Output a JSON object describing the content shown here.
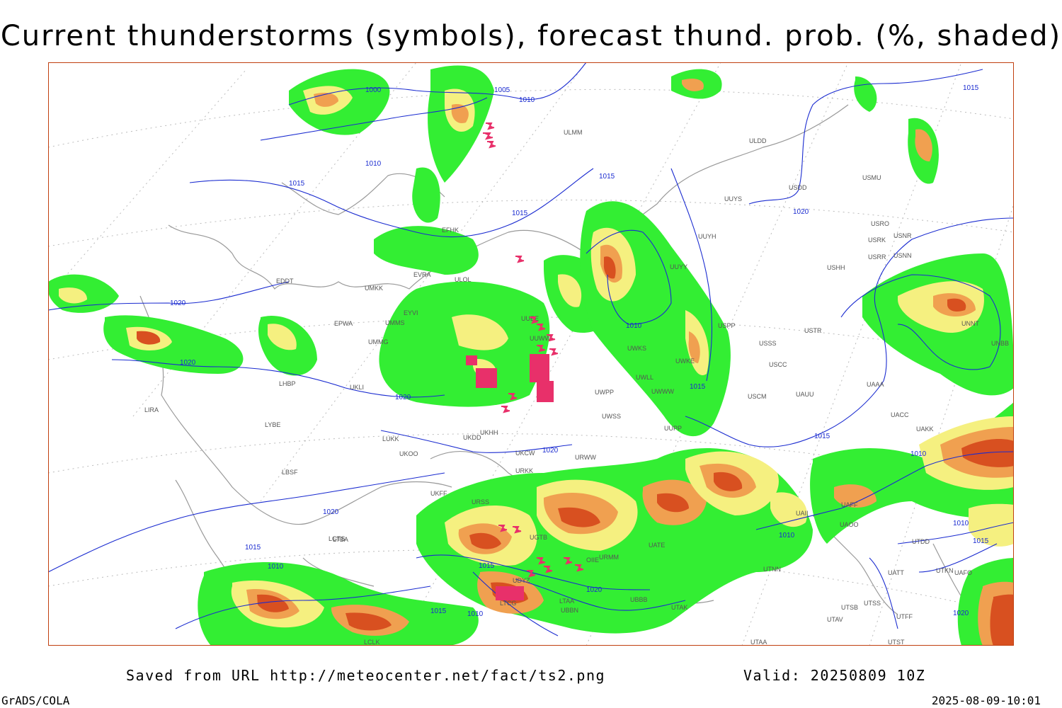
{
  "header": {
    "title": "Current thunderstorms (symbols), forecast thund. prob. (%, shaded)"
  },
  "footer": {
    "source": "Saved from URL http://meteocenter.net/fact/ts2.png",
    "valid": "Valid: 20250809 10Z",
    "credit": "GrADS/COLA",
    "timestamp": "2025-08-09-10:01"
  },
  "colors": {
    "prob_low": "#33ee33",
    "prob_mid": "#f5f080",
    "prob_high": "#f0a050",
    "prob_max": "#d85020",
    "storm_symbol": "#e8306a",
    "isobar": "#1a2bd0",
    "coastline": "#999999",
    "border": "#c04010"
  },
  "isobar_labels": [
    "1000",
    "1005",
    "1010",
    "1010",
    "1015",
    "1015",
    "1020",
    "1020",
    "1010",
    "1020",
    "1015",
    "1020",
    "1020",
    "1015",
    "1015",
    "1010",
    "1010",
    "1015",
    "1020",
    "1015",
    "1015",
    "1010",
    "1010",
    "1015",
    "1020",
    "1010",
    "1015",
    "1020"
  ],
  "stations": [
    "ULMM",
    "ULDD",
    "USDD",
    "USMU",
    "UUYS",
    "UUYH",
    "UUYY",
    "USRO",
    "USRK",
    "USNR",
    "USRR",
    "USNN",
    "USHH",
    "EDDT",
    "EPWA",
    "EYVI",
    "UMMS",
    "UMKK",
    "ULOL",
    "EVRA",
    "EFHK",
    "UUEE",
    "UUWW",
    "UMMG",
    "UKLI",
    "LHBP",
    "LIRA",
    "LYBE",
    "LBSF",
    "LUKK",
    "UKOO",
    "UKDD",
    "UKHH",
    "UKCW",
    "UKFF",
    "URSS",
    "URKK",
    "URMM",
    "URWW",
    "UWPP",
    "UWSS",
    "UWKS",
    "UWWW",
    "UWKE",
    "UWLL",
    "UUPP",
    "USPP",
    "USSS",
    "USTR",
    "USCC",
    "USCM",
    "UAUU",
    "UACC",
    "UAKK",
    "UAAA",
    "UAOO",
    "UATT",
    "UATE",
    "UTNN",
    "UTAK",
    "UTAA",
    "UTSB",
    "UTAV",
    "UTSS",
    "UTDD",
    "UTFF",
    "UTKN",
    "UAFO",
    "UTST",
    "UNNT",
    "UNBB",
    "LGTS",
    "LTBA",
    "LTAA",
    "LTCG",
    "UBBB",
    "UBBN",
    "UGTB",
    "UDYZ",
    "OIIE",
    "LCLK",
    "UAII",
    "UAFF"
  ]
}
